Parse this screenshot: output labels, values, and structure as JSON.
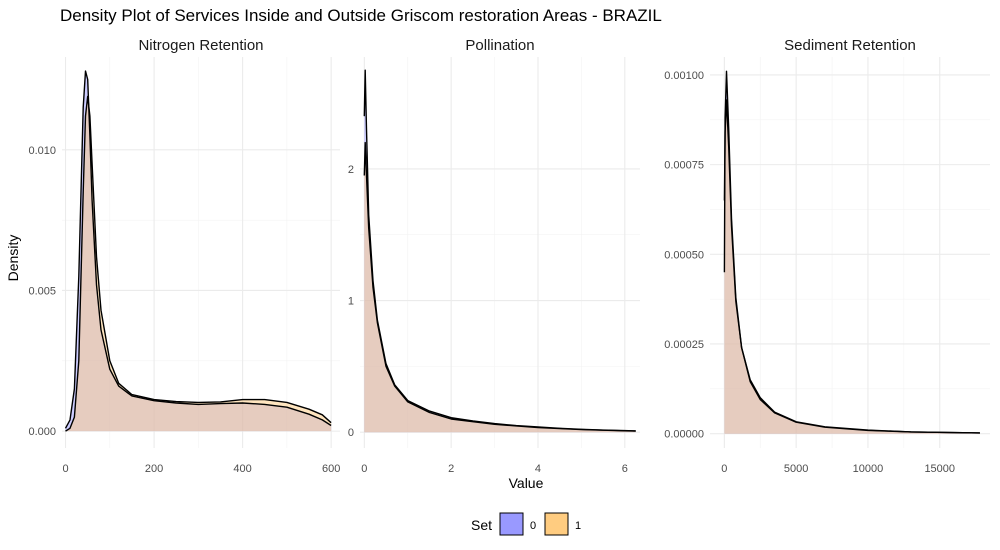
{
  "chart_data": {
    "type": "area",
    "title": "Density Plot of Services Inside and Outside Griscom restoration Areas - BRAZIL",
    "xlabel": "Value",
    "ylabel": "Density",
    "legend": {
      "title": "Set",
      "placement": "bottom",
      "items": [
        {
          "label": "0",
          "color": "#9999ff"
        },
        {
          "label": "1",
          "color": "#ffcc80"
        }
      ]
    },
    "overlap_color": "#b58e96",
    "grid": true,
    "facets": [
      {
        "name": "Nitrogen Retention",
        "xlim": [
          -8,
          620
        ],
        "ylim": [
          -0.0006,
          0.0133
        ],
        "xticks": [
          0,
          200,
          400,
          600
        ],
        "xtick_labels": [
          "0",
          "200",
          "400",
          "600"
        ],
        "yticks": [
          0,
          0.005,
          0.01
        ],
        "ytick_labels": [
          "0.000",
          "0.005",
          "0.010"
        ],
        "series": [
          {
            "name": "0",
            "x": [
              0,
              10,
              20,
              30,
              40,
              45,
              50,
              55,
              60,
              70,
              80,
              100,
              120,
              150,
              200,
              250,
              300,
              350,
              400,
              450,
              500,
              550,
              580,
              600
            ],
            "y": [
              0.0001,
              0.0004,
              0.0015,
              0.0055,
              0.0115,
              0.0128,
              0.0125,
              0.0105,
              0.0082,
              0.0052,
              0.0036,
              0.0022,
              0.0016,
              0.00125,
              0.00108,
              0.001,
              0.00095,
              0.00098,
              0.001,
              0.00095,
              0.00085,
              0.0006,
              0.0004,
              0.0002
            ]
          },
          {
            "name": "1",
            "x": [
              0,
              10,
              20,
              30,
              40,
              45,
              50,
              55,
              60,
              70,
              80,
              100,
              120,
              150,
              200,
              250,
              300,
              350,
              400,
              450,
              500,
              550,
              580,
              600
            ],
            "y": [
              0,
              0.0001,
              0.0005,
              0.0025,
              0.0085,
              0.0112,
              0.0119,
              0.0112,
              0.0095,
              0.0062,
              0.0043,
              0.0025,
              0.0017,
              0.0013,
              0.00112,
              0.00105,
              0.00102,
              0.00104,
              0.00112,
              0.00112,
              0.00102,
              0.00078,
              0.00058,
              0.0003
            ]
          }
        ]
      },
      {
        "name": "Pollination",
        "xlim": [
          -0.1,
          6.35
        ],
        "ylim": [
          -0.12,
          2.85
        ],
        "xticks": [
          0,
          2,
          4,
          6
        ],
        "xtick_labels": [
          "0",
          "2",
          "4",
          "6"
        ],
        "yticks": [
          0,
          1,
          2
        ],
        "ytick_labels": [
          "0",
          "1",
          "2"
        ],
        "series": [
          {
            "name": "0",
            "x": [
              0,
              0.02,
              0.05,
              0.1,
              0.2,
              0.3,
              0.5,
              0.7,
              1,
              1.5,
              2,
              2.5,
              3,
              3.5,
              4,
              4.5,
              5,
              5.5,
              6,
              6.25
            ],
            "y": [
              2.4,
              2.75,
              2.3,
              1.65,
              1.15,
              0.85,
              0.52,
              0.36,
              0.24,
              0.16,
              0.11,
              0.085,
              0.065,
              0.05,
              0.04,
              0.03,
              0.022,
              0.016,
              0.012,
              0.01
            ]
          },
          {
            "name": "1",
            "x": [
              0,
              0.02,
              0.05,
              0.1,
              0.2,
              0.3,
              0.5,
              0.7,
              1,
              1.5,
              2,
              2.5,
              3,
              3.5,
              4,
              4.5,
              5,
              5.5,
              6,
              6.25
            ],
            "y": [
              1.95,
              2.2,
              1.95,
              1.55,
              1.1,
              0.83,
              0.5,
              0.35,
              0.23,
              0.15,
              0.1,
              0.08,
              0.06,
              0.048,
              0.036,
              0.027,
              0.02,
              0.015,
              0.011,
              0.009
            ]
          }
        ]
      },
      {
        "name": "Sediment Retention",
        "xlim": [
          -1000,
          18500
        ],
        "ylim": [
          -4e-05,
          0.00105
        ],
        "xticks": [
          0,
          5000,
          10000,
          15000
        ],
        "xtick_labels": [
          "0",
          "5000",
          "10000",
          "15000"
        ],
        "yticks": [
          0,
          0.00025,
          0.0005,
          0.00075,
          0.001
        ],
        "ytick_labels": [
          "0.00000",
          "0.00025",
          "0.00050",
          "0.00075",
          "0.00100"
        ],
        "series": [
          {
            "name": "0",
            "x": [
              0,
              50,
              150,
              300,
              500,
              800,
              1200,
              1800,
              2500,
              3500,
              5000,
              7000,
              10000,
              13000,
              16000,
              17800
            ],
            "y": [
              0.00045,
              0.00088,
              0.00101,
              0.00085,
              0.0006,
              0.00038,
              0.00024,
              0.000145,
              9.5e-05,
              5.8e-05,
              3.2e-05,
              1.8e-05,
              9e-06,
              5e-06,
              3e-06,
              2e-06
            ]
          },
          {
            "name": "1",
            "x": [
              0,
              50,
              150,
              300,
              500,
              800,
              1200,
              1800,
              2500,
              3500,
              5000,
              7000,
              10000,
              13000,
              16000,
              17800
            ],
            "y": [
              0.00065,
              0.00084,
              0.00093,
              0.0008,
              0.00058,
              0.00037,
              0.00024,
              0.00015,
              0.0001,
              6e-05,
              3.3e-05,
              1.9e-05,
              1e-05,
              5e-06,
              3e-06,
              2e-06
            ]
          }
        ]
      }
    ]
  }
}
